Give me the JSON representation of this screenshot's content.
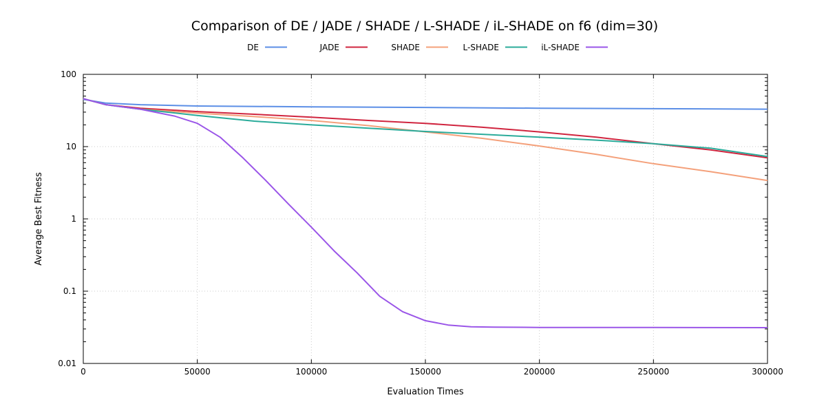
{
  "chart_data": {
    "type": "line",
    "title": "Comparison of DE / JADE / SHADE / L-SHADE / iL-SHADE on f6 (dim=30)",
    "xlabel": "Evaluation Times",
    "ylabel": "Average Best Fitness",
    "xlim": [
      0,
      300000
    ],
    "ylim": [
      0.01,
      100
    ],
    "yscale": "log",
    "x_ticks": [
      0,
      50000,
      100000,
      150000,
      200000,
      250000,
      300000
    ],
    "x_tick_labels": [
      "0",
      "50000",
      "100000",
      "150000",
      "200000",
      "250000",
      "300000"
    ],
    "y_ticks": [
      0.01,
      0.1,
      1,
      10,
      100
    ],
    "y_tick_labels": [
      "0.01",
      "0.1",
      "1",
      "10",
      "100"
    ],
    "grid": true,
    "legend_position": "top-center",
    "series": [
      {
        "name": "DE",
        "color": "#5b8ee6",
        "x": [
          0,
          10000,
          25000,
          50000,
          100000,
          150000,
          200000,
          250000,
          300000
        ],
        "y": [
          45,
          40,
          38,
          36.5,
          35.5,
          34.8,
          34,
          33.5,
          33
        ]
      },
      {
        "name": "JADE",
        "color": "#d0243e",
        "x": [
          0,
          10000,
          25000,
          50000,
          75000,
          100000,
          125000,
          150000,
          175000,
          200000,
          225000,
          250000,
          275000,
          300000
        ],
        "y": [
          46,
          38,
          34,
          30.5,
          28,
          25.5,
          23,
          21,
          18.5,
          16,
          13.5,
          11,
          9,
          7
        ]
      },
      {
        "name": "SHADE",
        "color": "#f4a07a",
        "x": [
          0,
          10000,
          25000,
          50000,
          75000,
          100000,
          125000,
          150000,
          175000,
          200000,
          225000,
          250000,
          275000,
          300000
        ],
        "y": [
          46,
          38,
          33,
          29,
          26,
          23,
          19.5,
          16,
          13,
          10.2,
          7.8,
          5.8,
          4.5,
          3.4
        ]
      },
      {
        "name": "L-SHADE",
        "color": "#2aab9a",
        "x": [
          0,
          10000,
          25000,
          50000,
          75000,
          100000,
          125000,
          150000,
          175000,
          200000,
          225000,
          250000,
          275000,
          300000
        ],
        "y": [
          46,
          38,
          33,
          27,
          22.5,
          20,
          18,
          16.2,
          14.8,
          13.5,
          12.3,
          11,
          9.5,
          7.3
        ]
      },
      {
        "name": "iL-SHADE",
        "color": "#9a55e8",
        "x": [
          0,
          10000,
          25000,
          40000,
          50000,
          60000,
          70000,
          80000,
          90000,
          100000,
          110000,
          120000,
          130000,
          140000,
          150000,
          160000,
          170000,
          180000,
          200000,
          250000,
          300000
        ],
        "y": [
          46,
          38,
          33,
          26.5,
          21,
          13.5,
          7,
          3.4,
          1.6,
          0.77,
          0.36,
          0.18,
          0.085,
          0.052,
          0.039,
          0.034,
          0.0322,
          0.0318,
          0.0315,
          0.0314,
          0.0313
        ]
      }
    ]
  }
}
